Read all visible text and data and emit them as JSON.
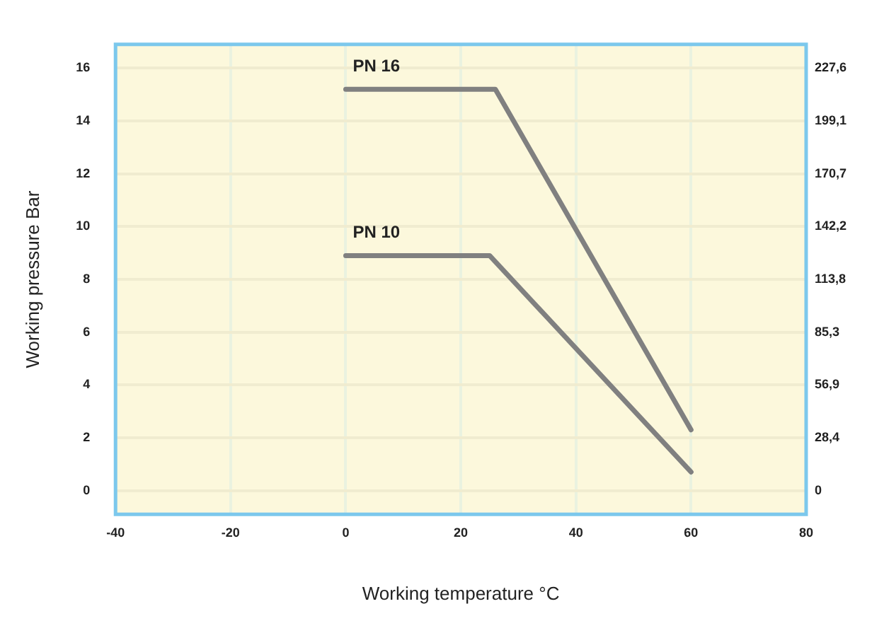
{
  "chart_data": {
    "type": "line",
    "xlabel": "Working temperature °C",
    "ylabel": "Working pressure Bar",
    "xlim": [
      -40,
      80
    ],
    "xticks": [
      -40,
      -20,
      0,
      20,
      40,
      60,
      80
    ],
    "ylim": [
      -0.9,
      16.9
    ],
    "yticks": [
      0,
      2,
      4,
      6,
      8,
      10,
      12,
      14,
      16
    ],
    "y2lim": [
      -12.8,
      240.4
    ],
    "y2ticks": [
      0,
      {
        "value": 28.4,
        "label": "28,4"
      },
      {
        "value": 56.9,
        "label": "56,9"
      },
      {
        "value": 85.3,
        "label": "85,3"
      },
      {
        "value": 113.8,
        "label": "113,8"
      },
      {
        "value": 142.2,
        "label": "142,2"
      },
      {
        "value": 170.7,
        "label": "170,7"
      },
      {
        "value": 199.1,
        "label": "199,1"
      },
      {
        "value": 227.6,
        "label": "227,6"
      }
    ],
    "grid": true,
    "legend": false,
    "marker": "none",
    "line_style": "solid",
    "series": [
      {
        "name": "PN 16",
        "color": "#808080",
        "x": [
          0,
          26,
          60
        ],
        "values": [
          15.2,
          15.2,
          2.3
        ]
      },
      {
        "name": "PN 10",
        "color": "#808080",
        "x": [
          0,
          25,
          60
        ],
        "values": [
          8.9,
          8.9,
          0.7
        ]
      }
    ]
  }
}
